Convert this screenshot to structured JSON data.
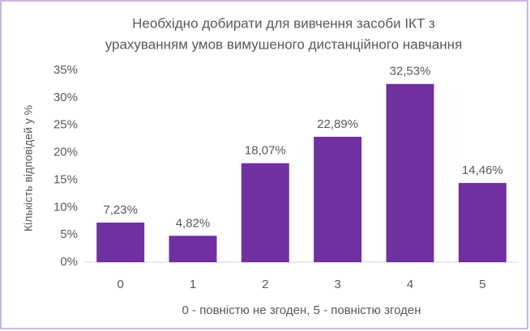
{
  "chart_data": {
    "type": "bar",
    "title": [
      "Необхідно добирати для вивчення засоби ІКТ з",
      "урахуванням умов вимушеного дистанційного навчання"
    ],
    "x_label": "0 - повністю не згоден, 5 - повністю згоден",
    "y_label": "Кількість відповідей у %",
    "categories": [
      "0",
      "1",
      "2",
      "3",
      "4",
      "5"
    ],
    "values": [
      7.23,
      4.82,
      18.07,
      22.89,
      32.53,
      14.46
    ],
    "value_labels": [
      "7,23%",
      "4,82%",
      "18,07%",
      "22,89%",
      "32,53%",
      "14,46%"
    ],
    "color": "#7030a0",
    "ylim": [
      0,
      35
    ],
    "yticks": [
      {
        "value": 0,
        "label": "0%"
      },
      {
        "value": 5,
        "label": "5%"
      },
      {
        "value": 10,
        "label": "10%"
      },
      {
        "value": 15,
        "label": "15%"
      },
      {
        "value": 20,
        "label": "20%"
      },
      {
        "value": 25,
        "label": "25%"
      },
      {
        "value": 30,
        "label": "30%"
      },
      {
        "value": 35,
        "label": "35%"
      }
    ],
    "grid": false
  }
}
